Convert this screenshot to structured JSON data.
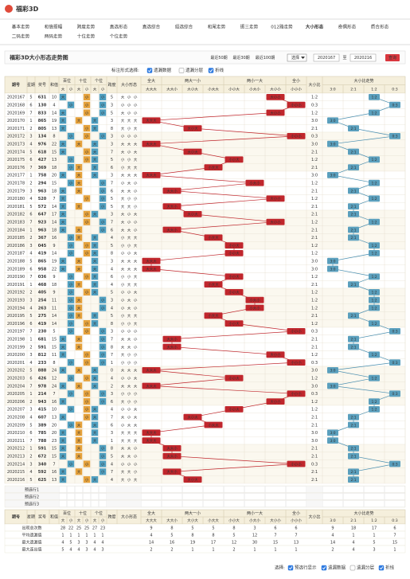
{
  "header": {
    "logo": "福彩3D"
  },
  "nav": [
    "基本走势",
    "和值振幅",
    "跨度走势",
    "直选形态",
    "直选综合",
    "组选综合",
    "和尾走势",
    "振三走势",
    "012路走势",
    "大小形态",
    "奇偶形态",
    "质合形态",
    "二码走势",
    "两码走势",
    "十位走势",
    "个位走势"
  ],
  "nav_active": 9,
  "toolbar": {
    "title": "福彩3D大小形态走势图",
    "range_links": [
      "最近50期",
      "最近30期",
      "最近100期"
    ],
    "select": "选择",
    "from": "2020167",
    "to_label": "至",
    "to": "2020216",
    "query": "查询"
  },
  "options": {
    "label": "标注形式选择:",
    "items": [
      {
        "label": "遗漏数据",
        "checked": true
      },
      {
        "label": "遗漏分层",
        "checked": false
      },
      {
        "label": "折线",
        "checked": true
      }
    ]
  },
  "table": {
    "groups": [
      "期号",
      "星期",
      "奖号",
      "和值",
      "百位",
      "十位",
      "个位",
      "跨度",
      "大小形态",
      "全大",
      "两大一小",
      "两小一大",
      "全小",
      "大小比",
      "大小比走势"
    ],
    "pos_sub": [
      "大",
      "小"
    ],
    "forms": [
      "大大大",
      "大大小",
      "大小大",
      "小大大",
      "小小大",
      "小大小",
      "大小小",
      "小小小"
    ],
    "ratios": [
      "3:0",
      "2:1",
      "1:2",
      "0:3"
    ],
    "rows": [
      {
        "issue": "2020167",
        "week": 5,
        "number": "631",
        "sum": 10,
        "span": 5,
        "pos": [
          "大",
          "小",
          "小"
        ],
        "ratio": "1:2"
      },
      {
        "issue": "2020168",
        "week": 6,
        "number": "130",
        "sum": 4,
        "span": 3,
        "pos": [
          "小",
          "小",
          "小"
        ],
        "ratio": "0:3"
      },
      {
        "issue": "2020169",
        "week": 7,
        "number": "833",
        "sum": 14,
        "span": 5,
        "pos": [
          "大",
          "小",
          "小"
        ],
        "ratio": "1:2"
      },
      {
        "issue": "2020170",
        "week": 1,
        "number": "865",
        "sum": 19,
        "span": 3,
        "pos": [
          "大",
          "大",
          "大"
        ],
        "ratio": "3:0"
      },
      {
        "issue": "2020171",
        "week": 2,
        "number": "805",
        "sum": 13,
        "span": 8,
        "pos": [
          "大",
          "小",
          "大"
        ],
        "ratio": "2:1"
      },
      {
        "issue": "2020172",
        "week": 3,
        "number": "134",
        "sum": 8,
        "span": 3,
        "pos": [
          "小",
          "小",
          "小"
        ],
        "ratio": "0:3"
      },
      {
        "issue": "2020173",
        "week": 4,
        "number": "976",
        "sum": 22,
        "span": 3,
        "pos": [
          "大",
          "大",
          "大"
        ],
        "ratio": "3:0"
      },
      {
        "issue": "2020174",
        "week": 5,
        "number": "618",
        "sum": 15,
        "span": 7,
        "pos": [
          "大",
          "小",
          "大"
        ],
        "ratio": "2:1"
      },
      {
        "issue": "2020175",
        "week": 6,
        "number": "427",
        "sum": 13,
        "span": 5,
        "pos": [
          "小",
          "小",
          "大"
        ],
        "ratio": "1:2"
      },
      {
        "issue": "2020176",
        "week": 7,
        "number": "369",
        "sum": 18,
        "span": 6,
        "pos": [
          "小",
          "大",
          "大"
        ],
        "ratio": "2:1"
      },
      {
        "issue": "2020177",
        "week": 1,
        "number": "758",
        "sum": 20,
        "span": 3,
        "pos": [
          "大",
          "大",
          "大"
        ],
        "ratio": "3:0"
      },
      {
        "issue": "2020178",
        "week": 2,
        "number": "294",
        "sum": 15,
        "span": 7,
        "pos": [
          "小",
          "大",
          "小"
        ],
        "ratio": "1:2"
      },
      {
        "issue": "2020179",
        "week": 3,
        "number": "963",
        "sum": 18,
        "span": 6,
        "pos": [
          "大",
          "大",
          "小"
        ],
        "ratio": "2:1"
      },
      {
        "issue": "2020180",
        "week": 4,
        "number": "520",
        "sum": 7,
        "span": 5,
        "pos": [
          "大",
          "小",
          "小"
        ],
        "ratio": "1:2"
      },
      {
        "issue": "2020181",
        "week": 5,
        "number": "572",
        "sum": 14,
        "span": 5,
        "pos": [
          "大",
          "大",
          "小"
        ],
        "ratio": "2:1"
      },
      {
        "issue": "2020182",
        "week": 6,
        "number": "647",
        "sum": 17,
        "span": 3,
        "pos": [
          "大",
          "小",
          "大"
        ],
        "ratio": "2:1"
      },
      {
        "issue": "2020183",
        "week": 7,
        "number": "923",
        "sum": 14,
        "span": 7,
        "pos": [
          "大",
          "小",
          "小"
        ],
        "ratio": "1:2"
      },
      {
        "issue": "2020184",
        "week": 1,
        "number": "963",
        "sum": 18,
        "span": 6,
        "pos": [
          "大",
          "大",
          "小"
        ],
        "ratio": "2:1"
      },
      {
        "issue": "2020185",
        "week": 2,
        "number": "367",
        "sum": 16,
        "span": 4,
        "pos": [
          "小",
          "大",
          "大"
        ],
        "ratio": "2:1"
      },
      {
        "issue": "2020186",
        "week": 3,
        "number": "045",
        "sum": 9,
        "span": 5,
        "pos": [
          "小",
          "小",
          "大"
        ],
        "ratio": "1:2"
      },
      {
        "issue": "2020187",
        "week": 4,
        "number": "419",
        "sum": 14,
        "span": 8,
        "pos": [
          "小",
          "小",
          "大"
        ],
        "ratio": "1:2"
      },
      {
        "issue": "2020188",
        "week": 5,
        "number": "865",
        "sum": 19,
        "span": 3,
        "pos": [
          "大",
          "大",
          "大"
        ],
        "ratio": "3:0"
      },
      {
        "issue": "2020189",
        "week": 6,
        "number": "958",
        "sum": 22,
        "span": 4,
        "pos": [
          "大",
          "大",
          "大"
        ],
        "ratio": "3:0"
      },
      {
        "issue": "2020190",
        "week": 7,
        "number": "036",
        "sum": 9,
        "span": 6,
        "pos": [
          "小",
          "小",
          "大"
        ],
        "ratio": "1:2"
      },
      {
        "issue": "2020191",
        "week": 1,
        "number": "468",
        "sum": 18,
        "span": 4,
        "pos": [
          "小",
          "大",
          "大"
        ],
        "ratio": "2:1"
      },
      {
        "issue": "2020192",
        "week": 2,
        "number": "405",
        "sum": 9,
        "span": 5,
        "pos": [
          "小",
          "小",
          "大"
        ],
        "ratio": "1:2"
      },
      {
        "issue": "2020193",
        "week": 3,
        "number": "254",
        "sum": 11,
        "span": 3,
        "pos": [
          "小",
          "大",
          "小"
        ],
        "ratio": "1:2"
      },
      {
        "issue": "2020194",
        "week": 4,
        "number": "263",
        "sum": 11,
        "span": 4,
        "pos": [
          "小",
          "大",
          "小"
        ],
        "ratio": "1:2"
      },
      {
        "issue": "2020195",
        "week": 5,
        "number": "275",
        "sum": 14,
        "span": 5,
        "pos": [
          "小",
          "大",
          "大"
        ],
        "ratio": "2:1"
      },
      {
        "issue": "2020196",
        "week": 6,
        "number": "419",
        "sum": 14,
        "span": 8,
        "pos": [
          "小",
          "小",
          "大"
        ],
        "ratio": "1:2"
      },
      {
        "issue": "2020197",
        "week": 7,
        "number": "230",
        "sum": 5,
        "span": 3,
        "pos": [
          "小",
          "小",
          "小"
        ],
        "ratio": "0:3"
      },
      {
        "issue": "2020198",
        "week": 1,
        "number": "681",
        "sum": 15,
        "span": 7,
        "pos": [
          "大",
          "大",
          "小"
        ],
        "ratio": "2:1"
      },
      {
        "issue": "2020199",
        "week": 2,
        "number": "591",
        "sum": 15,
        "span": 8,
        "pos": [
          "大",
          "大",
          "小"
        ],
        "ratio": "2:1"
      },
      {
        "issue": "2020200",
        "week": 3,
        "number": "812",
        "sum": 11,
        "span": 7,
        "pos": [
          "大",
          "小",
          "小"
        ],
        "ratio": "1:2"
      },
      {
        "issue": "2020201",
        "week": 4,
        "number": "233",
        "sum": 8,
        "span": 1,
        "pos": [
          "小",
          "小",
          "小"
        ],
        "ratio": "0:3"
      },
      {
        "issue": "2020202",
        "week": 5,
        "number": "888",
        "sum": 24,
        "span": 0,
        "pos": [
          "大",
          "大",
          "大"
        ],
        "ratio": "3:0"
      },
      {
        "issue": "2020203",
        "week": 6,
        "number": "426",
        "sum": 12,
        "span": 4,
        "pos": [
          "小",
          "小",
          "大"
        ],
        "ratio": "1:2"
      },
      {
        "issue": "2020204",
        "week": 7,
        "number": "978",
        "sum": 24,
        "span": 2,
        "pos": [
          "大",
          "大",
          "大"
        ],
        "ratio": "3:0"
      },
      {
        "issue": "2020205",
        "week": 1,
        "number": "214",
        "sum": 7,
        "span": 3,
        "pos": [
          "小",
          "小",
          "小"
        ],
        "ratio": "0:3"
      },
      {
        "issue": "2020206",
        "week": 2,
        "number": "943",
        "sum": 16,
        "span": 6,
        "pos": [
          "大",
          "小",
          "小"
        ],
        "ratio": "1:2"
      },
      {
        "issue": "2020207",
        "week": 3,
        "number": "415",
        "sum": 10,
        "span": 4,
        "pos": [
          "小",
          "小",
          "大"
        ],
        "ratio": "1:2"
      },
      {
        "issue": "2020208",
        "week": 4,
        "number": "607",
        "sum": 13,
        "span": 7,
        "pos": [
          "大",
          "小",
          "大"
        ],
        "ratio": "2:1"
      },
      {
        "issue": "2020209",
        "week": 5,
        "number": "389",
        "sum": 20,
        "span": 6,
        "pos": [
          "小",
          "大",
          "大"
        ],
        "ratio": "2:1"
      },
      {
        "issue": "2020210",
        "week": 6,
        "number": "785",
        "sum": 20,
        "span": 3,
        "pos": [
          "大",
          "大",
          "大"
        ],
        "ratio": "3:0"
      },
      {
        "issue": "2020211",
        "week": 7,
        "number": "788",
        "sum": 23,
        "span": 1,
        "pos": [
          "大",
          "大",
          "大"
        ],
        "ratio": "3:0"
      },
      {
        "issue": "2020212",
        "week": 1,
        "number": "591",
        "sum": 15,
        "span": 8,
        "pos": [
          "大",
          "大",
          "小"
        ],
        "ratio": "2:1"
      },
      {
        "issue": "2020213",
        "week": 2,
        "number": "672",
        "sum": 15,
        "span": 5,
        "pos": [
          "大",
          "大",
          "小"
        ],
        "ratio": "2:1"
      },
      {
        "issue": "2020214",
        "week": 3,
        "number": "340",
        "sum": 7,
        "span": 4,
        "pos": [
          "小",
          "小",
          "小"
        ],
        "ratio": "0:3"
      },
      {
        "issue": "2020215",
        "week": 4,
        "number": "592",
        "sum": 16,
        "span": 7,
        "pos": [
          "大",
          "大",
          "小"
        ],
        "ratio": "2:1"
      },
      {
        "issue": "2020216",
        "week": 5,
        "number": "625",
        "sum": 13,
        "span": 4,
        "pos": [
          "大",
          "小",
          "大"
        ],
        "ratio": "2:1"
      }
    ],
    "preselect": [
      "预选行1",
      "预选行2",
      "预选行3"
    ],
    "stats": [
      {
        "label": "出现总次数",
        "values": [
          28,
          22,
          25,
          25,
          27,
          23,
          9,
          8,
          5,
          5,
          8,
          3,
          6,
          6,
          9,
          18,
          17,
          6
        ]
      },
      {
        "label": "平均遗漏值",
        "values": [
          1,
          1,
          1,
          1,
          1,
          1,
          4,
          5,
          8,
          8,
          5,
          12,
          7,
          7,
          4,
          1,
          1,
          7
        ]
      },
      {
        "label": "最大遗漏值",
        "values": [
          4,
          5,
          3,
          3,
          4,
          4,
          14,
          16,
          19,
          17,
          12,
          30,
          15,
          13,
          14,
          4,
          5,
          15
        ]
      },
      {
        "label": "最大连出值",
        "values": [
          5,
          4,
          4,
          3,
          4,
          3,
          2,
          2,
          1,
          1,
          2,
          1,
          1,
          1,
          2,
          4,
          3,
          1
        ]
      }
    ]
  },
  "footer": {
    "label": "选择:",
    "items": [
      {
        "label": "预选行显示",
        "checked": true
      },
      {
        "label": "遗漏数据",
        "checked": true
      },
      {
        "label": "遗漏分层",
        "checked": false
      },
      {
        "label": "折线",
        "checked": true
      }
    ]
  }
}
